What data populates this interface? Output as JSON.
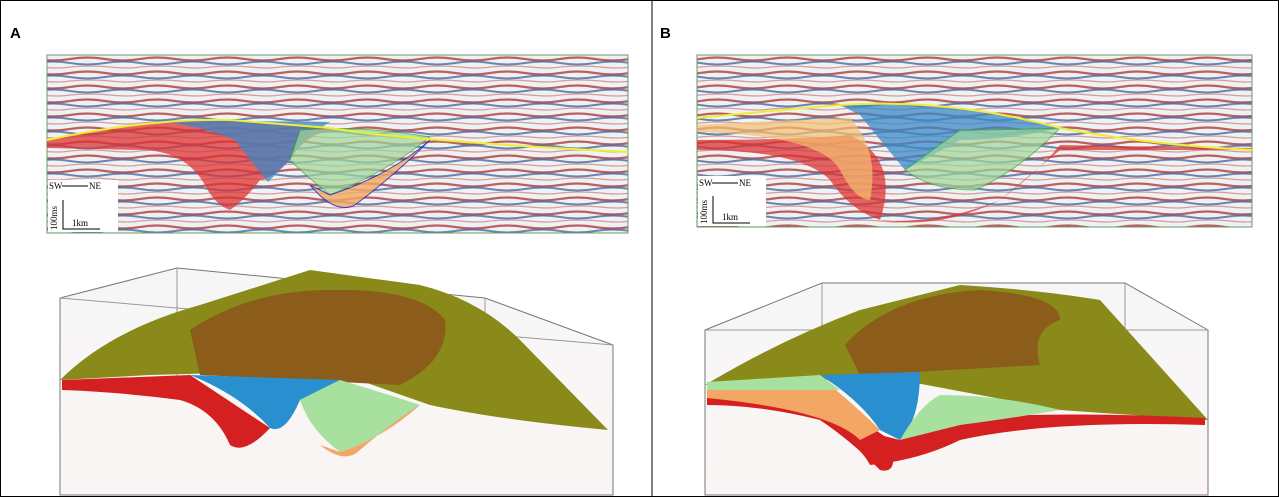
{
  "panels": [
    {
      "label": "A",
      "direction": {
        "left": "SW",
        "right": "NE"
      },
      "scale": {
        "time": "100ms",
        "distance": "1km"
      }
    },
    {
      "label": "B",
      "direction": {
        "left": "SW",
        "right": "NE"
      },
      "scale": {
        "time": "100ms",
        "distance": "1km"
      }
    }
  ]
}
